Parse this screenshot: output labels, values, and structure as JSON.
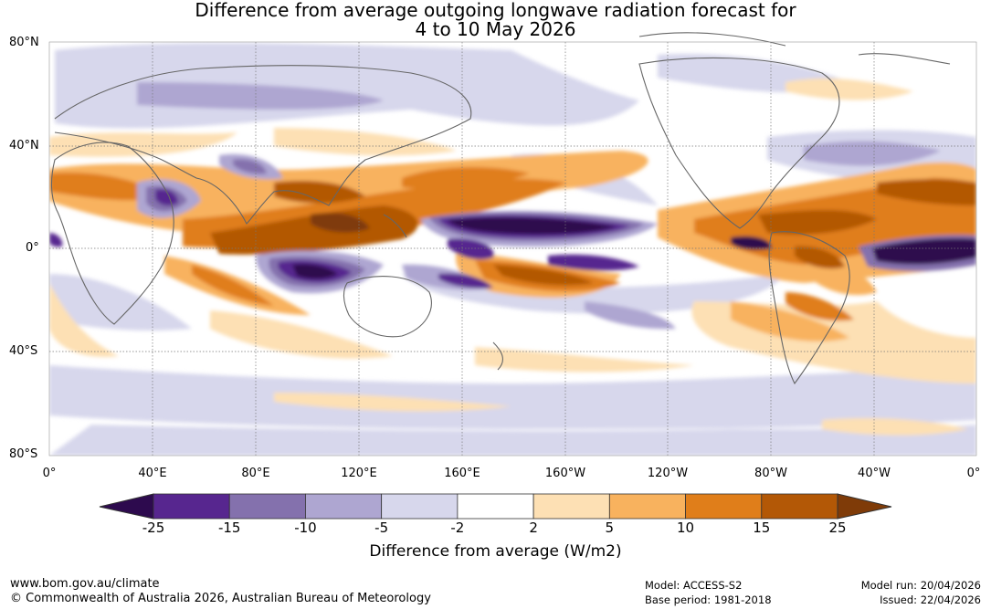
{
  "title": {
    "line1": "Difference from average outgoing longwave radiation forecast for",
    "line2": "4 to 10 May 2026"
  },
  "map": {
    "lat_labels": [
      "80°N",
      "40°N",
      "0°",
      "40°S",
      "80°S"
    ],
    "lon_labels": [
      "0°",
      "40°E",
      "80°E",
      "120°E",
      "160°E",
      "160°W",
      "120°W",
      "80°W",
      "40°W",
      "0°"
    ]
  },
  "colorbar": {
    "title": "Difference from average (W/m2)",
    "ticks": [
      "-25",
      "-15",
      "-10",
      "-5",
      "-2",
      "2",
      "5",
      "10",
      "15",
      "25"
    ],
    "colors": [
      "#2d0a4e",
      "#57268f",
      "#8471ad",
      "#aea6d1",
      "#d7d7ec",
      "#ffffff",
      "#fde0b4",
      "#f8b25e",
      "#e07e1a",
      "#b35806",
      "#7f3b08"
    ]
  },
  "footer": {
    "website": "www.bom.gov.au/climate",
    "copyright": "© Commonwealth of Australia 2026, Australian Bureau of Meteorology",
    "model": "Model: ACCESS-S2",
    "base_period": "Base period: 1981-2018",
    "model_run": "Model run: 20/04/2026",
    "issued": "Issued: 22/04/2026"
  }
}
